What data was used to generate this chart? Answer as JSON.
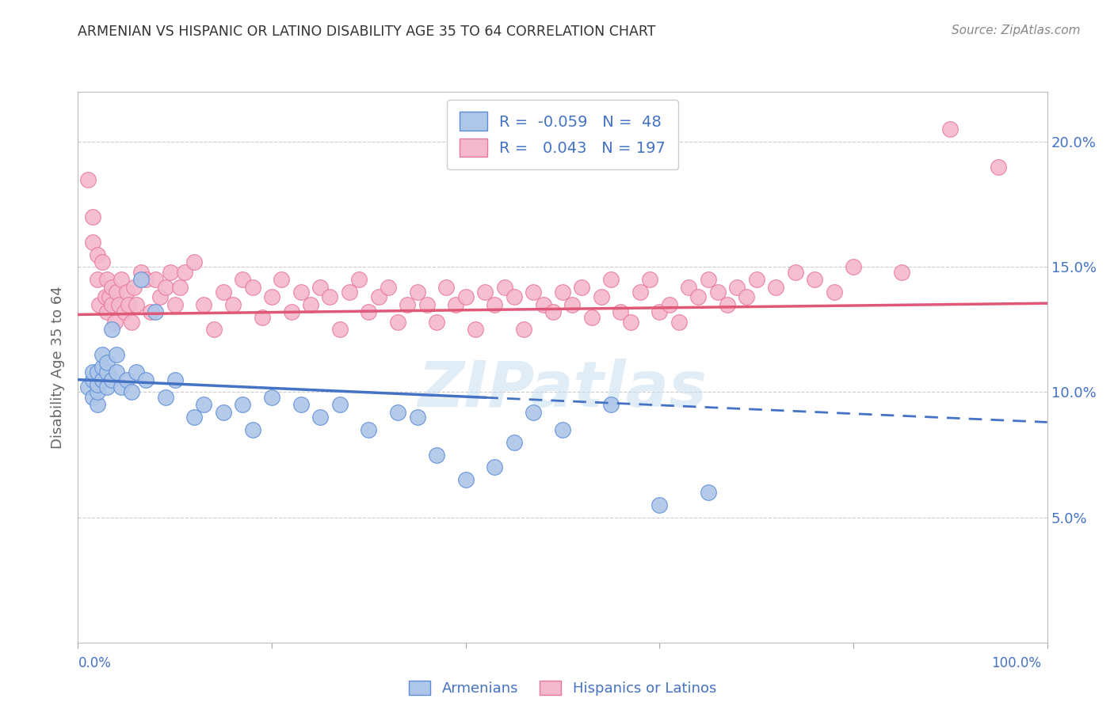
{
  "title": "ARMENIAN VS HISPANIC OR LATINO DISABILITY AGE 35 TO 64 CORRELATION CHART",
  "source": "Source: ZipAtlas.com",
  "ylabel": "Disability Age 35 to 64",
  "xmin": 0.0,
  "xmax": 100.0,
  "ymin": 0.0,
  "ymax": 22.0,
  "yticks": [
    5.0,
    10.0,
    15.0,
    20.0
  ],
  "ytick_labels": [
    "5.0%",
    "10.0%",
    "15.0%",
    "20.0%"
  ],
  "legend_blue_r": "-0.059",
  "legend_blue_n": "48",
  "legend_pink_r": "0.043",
  "legend_pink_n": "197",
  "blue_fill_color": "#aec6e8",
  "pink_fill_color": "#f4b8cc",
  "blue_edge_color": "#5b8dd9",
  "pink_edge_color": "#e8789a",
  "blue_line_color": "#4472c4",
  "pink_line_color": "#e05878",
  "watermark": "ZIPatlas",
  "blue_scatter_x": [
    1.0,
    1.5,
    1.5,
    1.5,
    2.0,
    2.0,
    2.0,
    2.0,
    2.5,
    2.5,
    2.5,
    3.0,
    3.0,
    3.0,
    3.5,
    3.5,
    4.0,
    4.0,
    4.5,
    5.0,
    5.5,
    6.0,
    6.5,
    7.0,
    8.0,
    9.0,
    10.0,
    12.0,
    13.0,
    15.0,
    17.0,
    18.0,
    20.0,
    23.0,
    25.0,
    27.0,
    30.0,
    33.0,
    35.0,
    37.0,
    40.0,
    43.0,
    45.0,
    47.0,
    50.0,
    55.0,
    60.0,
    65.0
  ],
  "blue_scatter_y": [
    10.2,
    9.8,
    10.5,
    10.8,
    9.5,
    10.0,
    10.3,
    10.8,
    10.5,
    11.0,
    11.5,
    10.2,
    10.8,
    11.2,
    10.5,
    12.5,
    10.8,
    11.5,
    10.2,
    10.5,
    10.0,
    10.8,
    14.5,
    10.5,
    13.2,
    9.8,
    10.5,
    9.0,
    9.5,
    9.2,
    9.5,
    8.5,
    9.8,
    9.5,
    9.0,
    9.5,
    8.5,
    9.2,
    9.0,
    7.5,
    6.5,
    7.0,
    8.0,
    9.2,
    8.5,
    9.5,
    5.5,
    6.0
  ],
  "pink_scatter_x": [
    1.0,
    1.5,
    1.5,
    2.0,
    2.0,
    2.2,
    2.5,
    2.8,
    3.0,
    3.0,
    3.2,
    3.5,
    3.5,
    3.8,
    4.0,
    4.2,
    4.5,
    4.8,
    5.0,
    5.2,
    5.5,
    5.8,
    6.0,
    6.5,
    7.0,
    7.5,
    8.0,
    8.5,
    9.0,
    9.5,
    10.0,
    10.5,
    11.0,
    12.0,
    13.0,
    14.0,
    15.0,
    16.0,
    17.0,
    18.0,
    19.0,
    20.0,
    21.0,
    22.0,
    23.0,
    24.0,
    25.0,
    26.0,
    27.0,
    28.0,
    29.0,
    30.0,
    31.0,
    32.0,
    33.0,
    34.0,
    35.0,
    36.0,
    37.0,
    38.0,
    39.0,
    40.0,
    41.0,
    42.0,
    43.0,
    44.0,
    45.0,
    46.0,
    47.0,
    48.0,
    49.0,
    50.0,
    51.0,
    52.0,
    53.0,
    54.0,
    55.0,
    56.0,
    57.0,
    58.0,
    59.0,
    60.0,
    61.0,
    62.0,
    63.0,
    64.0,
    65.0,
    66.0,
    67.0,
    68.0,
    69.0,
    70.0,
    72.0,
    74.0,
    76.0,
    78.0,
    80.0,
    85.0,
    90.0,
    95.0
  ],
  "pink_scatter_y": [
    18.5,
    17.0,
    16.0,
    14.5,
    15.5,
    13.5,
    15.2,
    13.8,
    14.5,
    13.2,
    13.8,
    14.2,
    13.5,
    12.8,
    14.0,
    13.5,
    14.5,
    13.2,
    14.0,
    13.5,
    12.8,
    14.2,
    13.5,
    14.8,
    14.5,
    13.2,
    14.5,
    13.8,
    14.2,
    14.8,
    13.5,
    14.2,
    14.8,
    15.2,
    13.5,
    12.5,
    14.0,
    13.5,
    14.5,
    14.2,
    13.0,
    13.8,
    14.5,
    13.2,
    14.0,
    13.5,
    14.2,
    13.8,
    12.5,
    14.0,
    14.5,
    13.2,
    13.8,
    14.2,
    12.8,
    13.5,
    14.0,
    13.5,
    12.8,
    14.2,
    13.5,
    13.8,
    12.5,
    14.0,
    13.5,
    14.2,
    13.8,
    12.5,
    14.0,
    13.5,
    13.2,
    14.0,
    13.5,
    14.2,
    13.0,
    13.8,
    14.5,
    13.2,
    12.8,
    14.0,
    14.5,
    13.2,
    13.5,
    12.8,
    14.2,
    13.8,
    14.5,
    14.0,
    13.5,
    14.2,
    13.8,
    14.5,
    14.2,
    14.8,
    14.5,
    14.0,
    15.0,
    14.8,
    20.5,
    19.0
  ],
  "blue_trend_solid_end_x": 42.0,
  "blue_trend_start_y": 10.5,
  "blue_trend_end_y": 8.8,
  "pink_trend_start_y": 13.1,
  "pink_trend_end_y": 13.55,
  "bg_color": "#ffffff",
  "grid_color": "#cccccc",
  "title_color": "#333333",
  "axis_color": "#4472c4",
  "legend_text_black": "R = ",
  "legend_text_color": "#333333"
}
